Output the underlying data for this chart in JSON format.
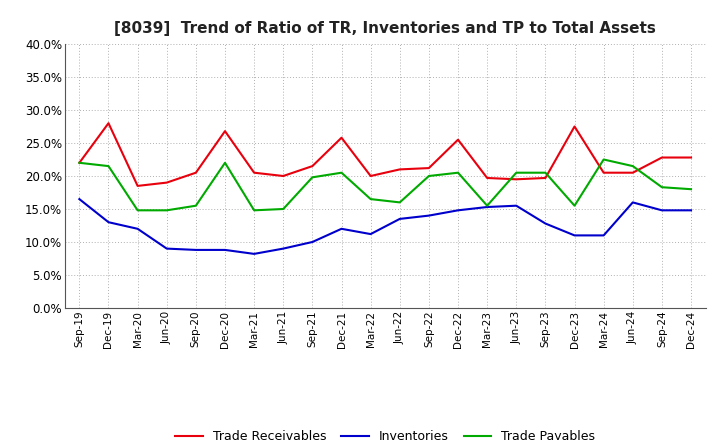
{
  "title": "[8039]  Trend of Ratio of TR, Inventories and TP to Total Assets",
  "x_labels": [
    "Sep-19",
    "Dec-19",
    "Mar-20",
    "Jun-20",
    "Sep-20",
    "Dec-20",
    "Mar-21",
    "Jun-21",
    "Sep-21",
    "Dec-21",
    "Mar-22",
    "Jun-22",
    "Sep-22",
    "Dec-22",
    "Mar-23",
    "Jun-23",
    "Sep-23",
    "Dec-23",
    "Mar-24",
    "Jun-24",
    "Sep-24",
    "Dec-24"
  ],
  "trade_receivables": [
    0.22,
    0.28,
    0.185,
    0.19,
    0.205,
    0.268,
    0.205,
    0.2,
    0.215,
    0.258,
    0.2,
    0.21,
    0.212,
    0.255,
    0.197,
    0.195,
    0.197,
    0.275,
    0.205,
    0.205,
    0.228,
    0.228
  ],
  "inventories": [
    0.165,
    0.13,
    0.12,
    0.09,
    0.088,
    0.088,
    0.082,
    0.09,
    0.1,
    0.12,
    0.112,
    0.135,
    0.14,
    0.148,
    0.153,
    0.155,
    0.128,
    0.11,
    0.11,
    0.16,
    0.148,
    0.148
  ],
  "trade_payables": [
    0.22,
    0.215,
    0.148,
    0.148,
    0.155,
    0.22,
    0.148,
    0.15,
    0.198,
    0.205,
    0.165,
    0.16,
    0.2,
    0.205,
    0.155,
    0.205,
    0.205,
    0.155,
    0.225,
    0.215,
    0.183,
    0.18
  ],
  "tr_color": "#e8000d",
  "inv_color": "#0000cc",
  "tp_color": "#00aa00",
  "ylim": [
    0.0,
    0.4
  ],
  "yticks": [
    0.0,
    0.05,
    0.1,
    0.15,
    0.2,
    0.25,
    0.3,
    0.35,
    0.4
  ],
  "background_color": "#ffffff",
  "grid_color": "#b0b0b0"
}
